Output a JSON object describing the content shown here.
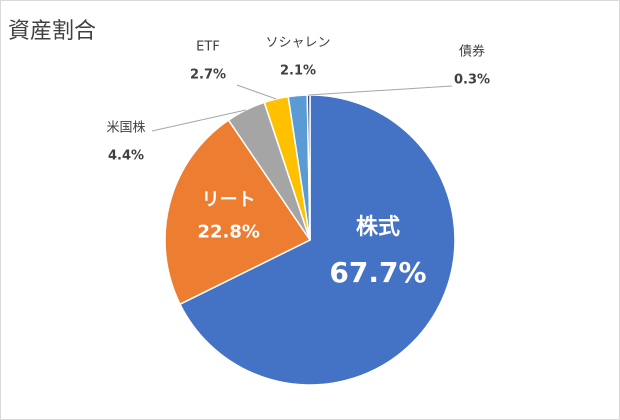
{
  "chart_data": {
    "type": "pie",
    "title": "資産割合",
    "categories": [
      "株式",
      "リート",
      "米国株",
      "ETF",
      "ソシャレン",
      "債券"
    ],
    "values": [
      67.7,
      22.8,
      4.4,
      2.7,
      2.1,
      0.3
    ],
    "value_labels": [
      "67.7%",
      "22.8%",
      "4.4%",
      "2.7%",
      "2.1%",
      "0.3%"
    ],
    "colors": [
      "#4472c4",
      "#ed7d31",
      "#a5a5a5",
      "#ffc000",
      "#5b9bd5",
      "#264478"
    ]
  }
}
